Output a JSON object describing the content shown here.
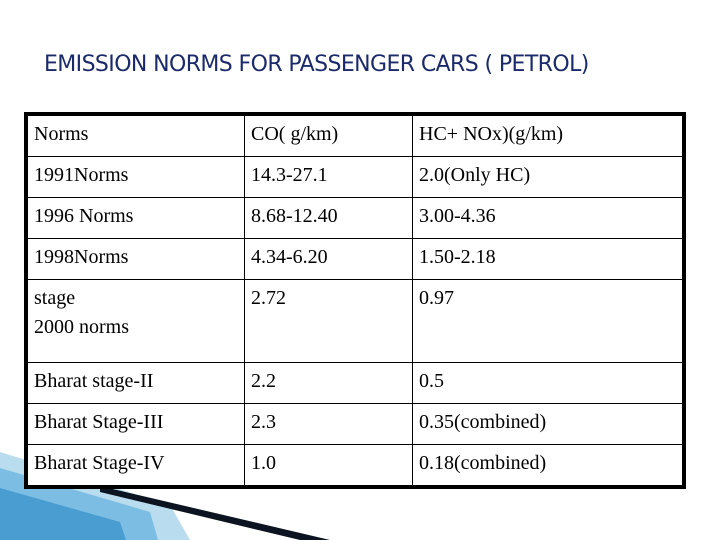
{
  "slide": {
    "title": "EMISSION NORMS FOR PASSENGER CARS ( PETROL)"
  },
  "table": {
    "header": [
      "Norms",
      "CO( g/km)",
      "HC+ NOx)(g/km)"
    ],
    "rows": [
      [
        "1991Norms",
        "14.3-27.1",
        "2.0(Only HC)"
      ],
      [
        "1996 Norms",
        "8.68-12.40",
        "3.00-4.36"
      ],
      [
        "1998Norms",
        "4.34-6.20",
        "1.50-2.18"
      ],
      [
        [
          "stage",
          "2000 norms"
        ],
        "2.72",
        "0.97"
      ],
      [
        "Bharat stage-II",
        "2.2",
        "0.5"
      ],
      [
        "Bharat Stage-III",
        "2.3",
        "0.35(combined)"
      ],
      [
        "Bharat Stage-IV",
        "1.0",
        "0.18(combined)"
      ]
    ]
  },
  "colors": {
    "title": "#1b2a6b",
    "ribbon_light": "#b9dcef",
    "ribbon_mid": "#4a9dd0",
    "ribbon_dark": "#0b1420"
  }
}
